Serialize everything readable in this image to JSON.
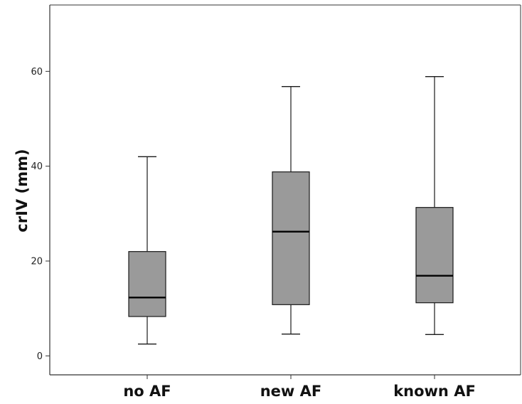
{
  "chart_data": {
    "type": "boxplot",
    "title": "",
    "xlabel": "",
    "ylabel": "crIV (mm)",
    "ylim": [
      -4,
      74
    ],
    "yticks": [
      0,
      20,
      40,
      60
    ],
    "grid": false,
    "categories": [
      "no AF",
      "new AF",
      "known AF"
    ],
    "boxes": [
      {
        "category": "no AF",
        "min": 2.5,
        "q1": 8.3,
        "median": 12.3,
        "q3": 22.0,
        "max": 42.0
      },
      {
        "category": "new AF",
        "min": 4.6,
        "q1": 10.8,
        "median": 26.2,
        "q3": 38.8,
        "max": 56.8
      },
      {
        "category": "known AF",
        "min": 4.5,
        "q1": 11.2,
        "median": 16.9,
        "q3": 31.3,
        "max": 58.9
      }
    ],
    "colors": {
      "box_fill": "#9a9a9a",
      "stroke": "#1a1a1a",
      "background": "#ffffff"
    }
  }
}
